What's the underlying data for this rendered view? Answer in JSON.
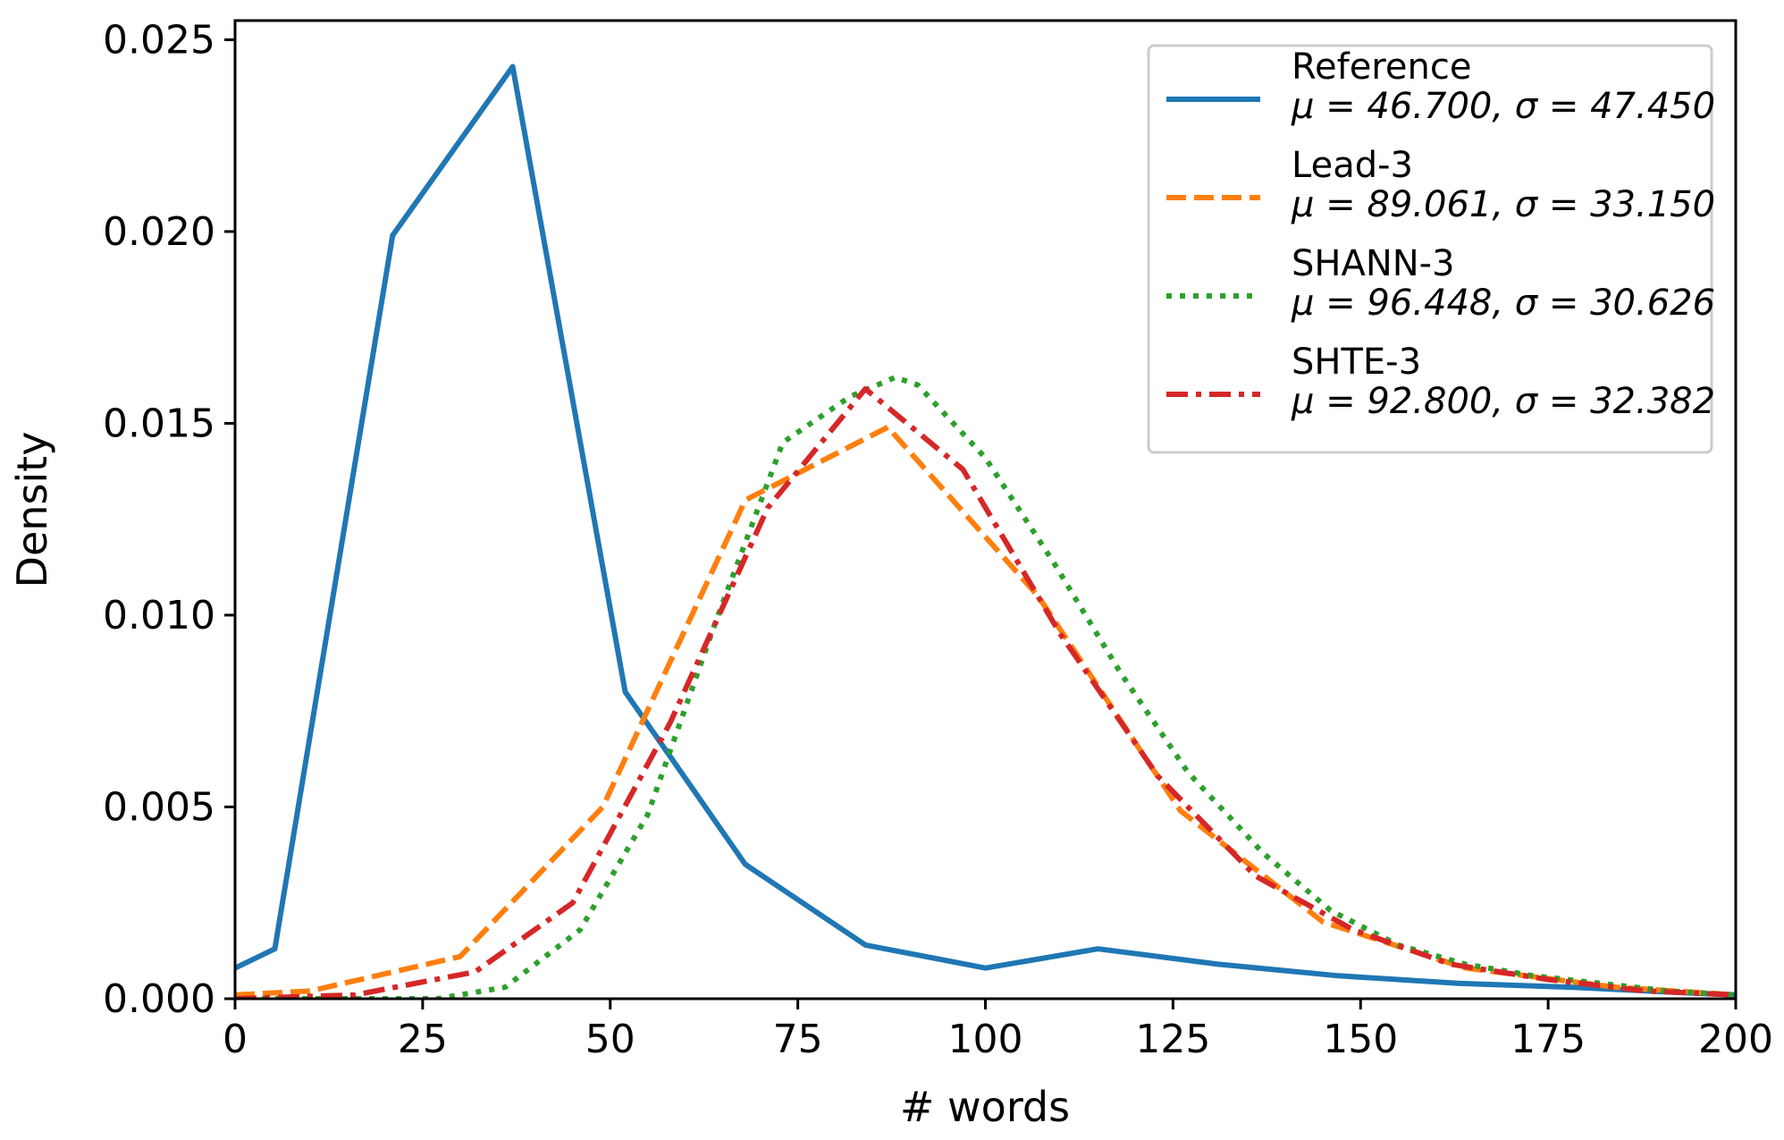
{
  "chart_data": {
    "type": "line",
    "title": "",
    "xlabel": "# words",
    "ylabel": "Density",
    "xlim": [
      0,
      200
    ],
    "ylim": [
      0,
      0.0255
    ],
    "xticks": [
      0,
      25,
      50,
      75,
      100,
      125,
      150,
      175,
      200
    ],
    "xtick_labels": [
      "0",
      "25",
      "50",
      "75",
      "100",
      "125",
      "150",
      "175",
      "200"
    ],
    "yticks": [
      0,
      0.005,
      0.01,
      0.015,
      0.02,
      0.025
    ],
    "ytick_labels": [
      "0.000",
      "0.005",
      "0.010",
      "0.015",
      "0.020",
      "0.025"
    ],
    "grid": false,
    "legend_position": "top-right",
    "series": [
      {
        "name": "Reference",
        "stats": "μ = 46.700, σ = 47.450",
        "color": "#1f77b4",
        "style": "solid",
        "x": [
          0,
          5.3,
          21,
          37,
          52,
          68,
          84,
          100,
          115,
          131,
          147,
          163,
          178,
          194,
          200
        ],
        "y": [
          0.0008,
          0.0013,
          0.0199,
          0.0243,
          0.008,
          0.0035,
          0.0014,
          0.0008,
          0.0013,
          0.0009,
          0.0006,
          0.0004,
          0.0003,
          0.00015,
          0.0001
        ]
      },
      {
        "name": "Lead-3",
        "stats": "μ = 89.061, σ = 33.150",
        "color": "#ff7f0e",
        "style": "dashed",
        "x": [
          0,
          10,
          30,
          49,
          68,
          87,
          107,
          126,
          145,
          164,
          184,
          200
        ],
        "y": [
          0.0001,
          0.0002,
          0.0011,
          0.005,
          0.013,
          0.0149,
          0.0105,
          0.0049,
          0.002,
          0.0008,
          0.0003,
          0.0001
        ]
      },
      {
        "name": "SHANN-3",
        "stats": "μ = 96.448, σ = 30.626",
        "color": "#2ca02c",
        "style": "dotted",
        "x": [
          0,
          9,
          18,
          27,
          36,
          46,
          55,
          64,
          73,
          82,
          88,
          91,
          100,
          109,
          118,
          127,
          137,
          146,
          155,
          164,
          173,
          182,
          191,
          200
        ],
        "y": [
          0,
          0,
          0,
          0,
          0.0003,
          0.0018,
          0.0048,
          0.0098,
          0.0145,
          0.0157,
          0.0162,
          0.016,
          0.0141,
          0.0114,
          0.0085,
          0.0059,
          0.0038,
          0.0023,
          0.0014,
          0.0009,
          0.0006,
          0.0004,
          0.0002,
          0.0001
        ]
      },
      {
        "name": "SHTE-3",
        "stats": "μ = 92.800, σ = 32.382",
        "color": "#d62728",
        "style": "dashdot",
        "x": [
          0,
          16,
          32,
          45,
          58,
          71,
          84,
          97,
          110,
          123,
          136,
          149,
          162,
          175,
          188,
          200
        ],
        "y": [
          0,
          0.0001,
          0.0007,
          0.0025,
          0.0072,
          0.0128,
          0.0159,
          0.0138,
          0.0095,
          0.0058,
          0.0032,
          0.0018,
          0.0009,
          0.0005,
          0.0002,
          0.0001
        ]
      }
    ]
  }
}
